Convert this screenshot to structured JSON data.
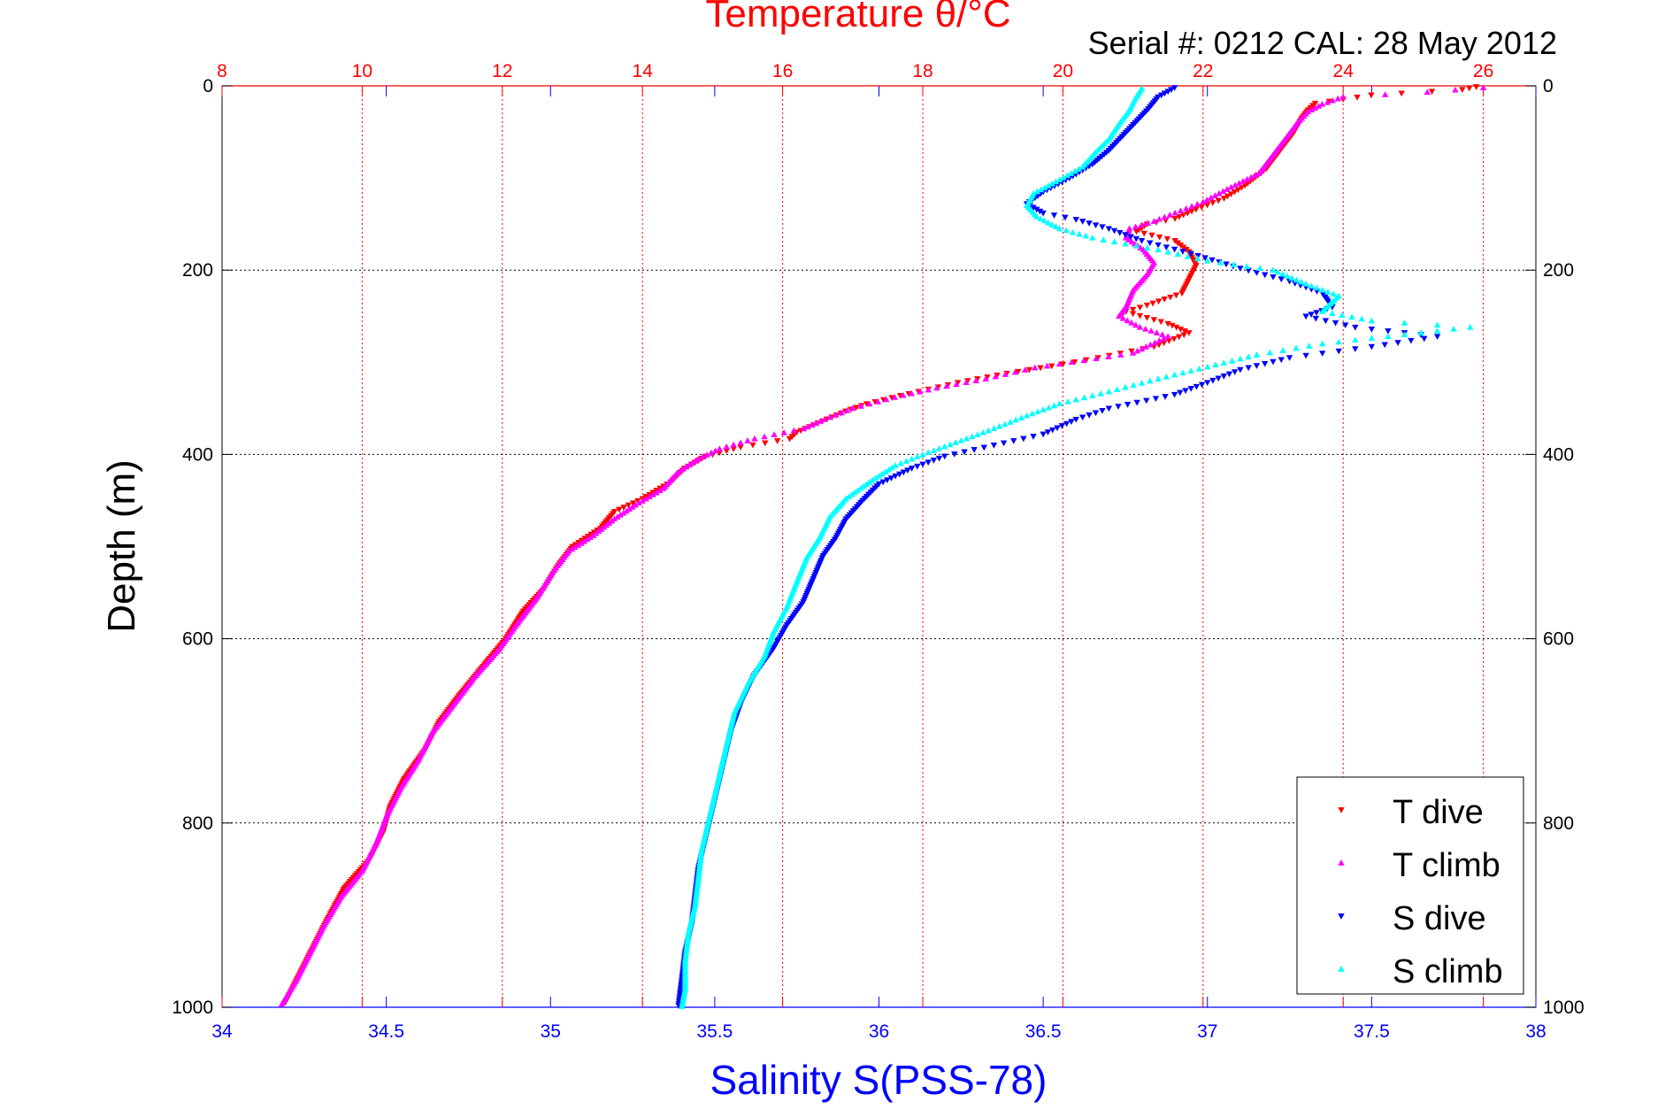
{
  "chart_data": {
    "type": "scatter",
    "title_top": "Temperature θ/°C",
    "annotation": "Serial #: 0212  CAL: 28 May 2012",
    "xlabel_bottom": "Salinity S(PSS-78)",
    "ylabel": "Depth (m)",
    "y_range": [
      0,
      1000
    ],
    "y_reversed": true,
    "y_ticks": [
      "0",
      "200",
      "400",
      "600",
      "800",
      "1000"
    ],
    "x_salinity_range": [
      34,
      38
    ],
    "x_salinity_ticks": [
      "34",
      "34.5",
      "35",
      "35.5",
      "36",
      "36.5",
      "37",
      "37.5",
      "38"
    ],
    "x_temperature_range": [
      8,
      26.75
    ],
    "x_temperature_ticks": [
      "8",
      "10",
      "12",
      "14",
      "16",
      "18",
      "20",
      "22",
      "24",
      "26"
    ],
    "grid": true,
    "legend_position": "bottom-right",
    "colors": {
      "t_dive": "#ff0000",
      "t_climb": "#ff00ff",
      "s_dive": "#0000ff",
      "s_climb": "#00ffff",
      "temperature_axis": "#ff0000",
      "salinity_axis": "#0000ff"
    },
    "series": [
      {
        "name": "T dive",
        "axis": "temperature",
        "marker": "triangle-down",
        "color": "#ff0000",
        "points": [
          [
            25.9,
            1
          ],
          [
            25.7,
            4
          ],
          [
            24.4,
            10
          ],
          [
            23.6,
            19
          ],
          [
            23.5,
            26
          ],
          [
            23.4,
            36
          ],
          [
            23.3,
            50
          ],
          [
            23.1,
            70
          ],
          [
            22.9,
            90
          ],
          [
            22.6,
            108
          ],
          [
            22.3,
            122
          ],
          [
            21.9,
            134
          ],
          [
            21.6,
            144
          ],
          [
            21.2,
            150
          ],
          [
            21.05,
            158
          ],
          [
            21.6,
            168
          ],
          [
            21.8,
            180
          ],
          [
            21.9,
            195
          ],
          [
            21.8,
            210
          ],
          [
            21.7,
            225
          ],
          [
            21.2,
            238
          ],
          [
            20.9,
            245
          ],
          [
            21.5,
            258
          ],
          [
            21.8,
            268
          ],
          [
            21.3,
            283
          ],
          [
            20.5,
            295
          ],
          [
            20.0,
            302
          ],
          [
            19.2,
            312
          ],
          [
            18.5,
            322
          ],
          [
            17.8,
            334
          ],
          [
            17.2,
            345
          ],
          [
            16.9,
            353
          ],
          [
            16.5,
            366
          ],
          [
            16.2,
            376
          ],
          [
            16.1,
            383
          ],
          [
            15.4,
            392
          ],
          [
            14.9,
            402
          ],
          [
            14.6,
            415
          ],
          [
            14.4,
            430
          ],
          [
            14.0,
            448
          ],
          [
            13.6,
            462
          ],
          [
            13.4,
            480
          ],
          [
            13.0,
            500
          ],
          [
            12.8,
            520
          ],
          [
            12.6,
            545
          ],
          [
            12.3,
            570
          ],
          [
            12.05,
            600
          ],
          [
            11.7,
            632
          ],
          [
            11.4,
            660
          ],
          [
            11.1,
            690
          ],
          [
            10.9,
            720
          ],
          [
            10.6,
            752
          ],
          [
            10.4,
            782
          ],
          [
            10.3,
            810
          ],
          [
            10.1,
            840
          ],
          [
            9.75,
            870
          ],
          [
            9.5,
            905
          ],
          [
            9.3,
            935
          ],
          [
            9.1,
            965
          ],
          [
            8.9,
            995
          ]
        ]
      },
      {
        "name": "T climb",
        "axis": "temperature",
        "marker": "triangle-up",
        "color": "#ff00ff",
        "points": [
          [
            26.0,
            2
          ],
          [
            25.2,
            7
          ],
          [
            24.0,
            12
          ],
          [
            23.7,
            20
          ],
          [
            23.5,
            28
          ],
          [
            23.35,
            40
          ],
          [
            23.2,
            55
          ],
          [
            23.0,
            75
          ],
          [
            22.8,
            95
          ],
          [
            22.4,
            110
          ],
          [
            22.0,
            126
          ],
          [
            21.6,
            138
          ],
          [
            21.3,
            147
          ],
          [
            20.95,
            155
          ],
          [
            20.9,
            165
          ],
          [
            21.15,
            178
          ],
          [
            21.3,
            192
          ],
          [
            21.2,
            205
          ],
          [
            21.0,
            222
          ],
          [
            20.9,
            240
          ],
          [
            20.8,
            250
          ],
          [
            21.1,
            262
          ],
          [
            21.5,
            272
          ],
          [
            21.0,
            290
          ],
          [
            20.3,
            298
          ],
          [
            19.6,
            306
          ],
          [
            18.9,
            318
          ],
          [
            18.2,
            328
          ],
          [
            17.6,
            338
          ],
          [
            17.0,
            350
          ],
          [
            16.6,
            362
          ],
          [
            16.3,
            372
          ],
          [
            15.6,
            383
          ],
          [
            15.1,
            394
          ],
          [
            14.8,
            405
          ],
          [
            14.5,
            420
          ],
          [
            14.3,
            437
          ],
          [
            13.9,
            455
          ],
          [
            13.6,
            470
          ],
          [
            13.3,
            488
          ],
          [
            12.95,
            505
          ],
          [
            12.7,
            530
          ],
          [
            12.5,
            555
          ],
          [
            12.2,
            585
          ],
          [
            11.95,
            612
          ],
          [
            11.6,
            642
          ],
          [
            11.3,
            672
          ],
          [
            11.0,
            702
          ],
          [
            10.8,
            732
          ],
          [
            10.55,
            762
          ],
          [
            10.35,
            792
          ],
          [
            10.2,
            822
          ],
          [
            10.0,
            852
          ],
          [
            9.7,
            880
          ],
          [
            9.45,
            912
          ],
          [
            9.25,
            942
          ],
          [
            9.05,
            972
          ],
          [
            8.85,
            997
          ]
        ]
      },
      {
        "name": "S dive",
        "axis": "salinity",
        "marker": "triangle-down",
        "color": "#0000ff",
        "points": [
          [
            36.9,
            2
          ],
          [
            36.85,
            12
          ],
          [
            36.82,
            25
          ],
          [
            36.78,
            40
          ],
          [
            36.74,
            55
          ],
          [
            36.7,
            70
          ],
          [
            36.65,
            85
          ],
          [
            36.58,
            100
          ],
          [
            36.5,
            115
          ],
          [
            36.45,
            128
          ],
          [
            36.5,
            138
          ],
          [
            36.6,
            145
          ],
          [
            36.7,
            155
          ],
          [
            36.8,
            168
          ],
          [
            36.95,
            182
          ],
          [
            37.1,
            198
          ],
          [
            37.25,
            212
          ],
          [
            37.35,
            225
          ],
          [
            37.38,
            240
          ],
          [
            37.3,
            250
          ],
          [
            37.45,
            262
          ],
          [
            37.7,
            272
          ],
          [
            37.5,
            283
          ],
          [
            37.25,
            295
          ],
          [
            37.1,
            308
          ],
          [
            37.0,
            322
          ],
          [
            36.9,
            335
          ],
          [
            36.7,
            350
          ],
          [
            36.6,
            362
          ],
          [
            36.5,
            378
          ],
          [
            36.35,
            390
          ],
          [
            36.2,
            402
          ],
          [
            36.1,
            415
          ],
          [
            36.0,
            432
          ],
          [
            35.95,
            450
          ],
          [
            35.9,
            470
          ],
          [
            35.87,
            490
          ],
          [
            35.83,
            510
          ],
          [
            35.8,
            535
          ],
          [
            35.77,
            560
          ],
          [
            35.72,
            585
          ],
          [
            35.68,
            610
          ],
          [
            35.62,
            640
          ],
          [
            35.58,
            670
          ],
          [
            35.55,
            700
          ],
          [
            35.53,
            730
          ],
          [
            35.51,
            760
          ],
          [
            35.49,
            790
          ],
          [
            35.47,
            820
          ],
          [
            35.45,
            850
          ],
          [
            35.44,
            880
          ],
          [
            35.43,
            910
          ],
          [
            35.41,
            940
          ],
          [
            35.4,
            970
          ],
          [
            35.39,
            998
          ]
        ]
      },
      {
        "name": "S climb",
        "axis": "salinity",
        "marker": "triangle-up",
        "color": "#00ffff",
        "points": [
          [
            36.8,
            3
          ],
          [
            36.78,
            14
          ],
          [
            36.76,
            28
          ],
          [
            36.73,
            42
          ],
          [
            36.7,
            58
          ],
          [
            36.66,
            72
          ],
          [
            36.62,
            88
          ],
          [
            36.55,
            102
          ],
          [
            36.47,
            117
          ],
          [
            36.45,
            130
          ],
          [
            36.48,
            142
          ],
          [
            36.55,
            155
          ],
          [
            36.65,
            165
          ],
          [
            36.85,
            178
          ],
          [
            37.0,
            190
          ],
          [
            37.2,
            200
          ],
          [
            37.3,
            215
          ],
          [
            37.4,
            228
          ],
          [
            37.35,
            245
          ],
          [
            37.5,
            255
          ],
          [
            37.8,
            262
          ],
          [
            37.6,
            270
          ],
          [
            37.35,
            280
          ],
          [
            37.15,
            292
          ],
          [
            37.0,
            305
          ],
          [
            36.85,
            318
          ],
          [
            36.7,
            332
          ],
          [
            36.55,
            345
          ],
          [
            36.45,
            358
          ],
          [
            36.35,
            372
          ],
          [
            36.25,
            385
          ],
          [
            36.15,
            398
          ],
          [
            36.05,
            412
          ],
          [
            35.98,
            428
          ],
          [
            35.9,
            448
          ],
          [
            35.85,
            468
          ],
          [
            35.82,
            490
          ],
          [
            35.78,
            512
          ],
          [
            35.75,
            538
          ],
          [
            35.72,
            565
          ],
          [
            35.68,
            592
          ],
          [
            35.65,
            620
          ],
          [
            35.6,
            650
          ],
          [
            35.56,
            680
          ],
          [
            35.54,
            710
          ],
          [
            35.52,
            740
          ],
          [
            35.5,
            770
          ],
          [
            35.48,
            800
          ],
          [
            35.46,
            830
          ],
          [
            35.45,
            860
          ],
          [
            35.44,
            890
          ],
          [
            35.42,
            920
          ],
          [
            35.41,
            950
          ],
          [
            35.41,
            980
          ],
          [
            35.4,
            999
          ]
        ]
      }
    ]
  }
}
